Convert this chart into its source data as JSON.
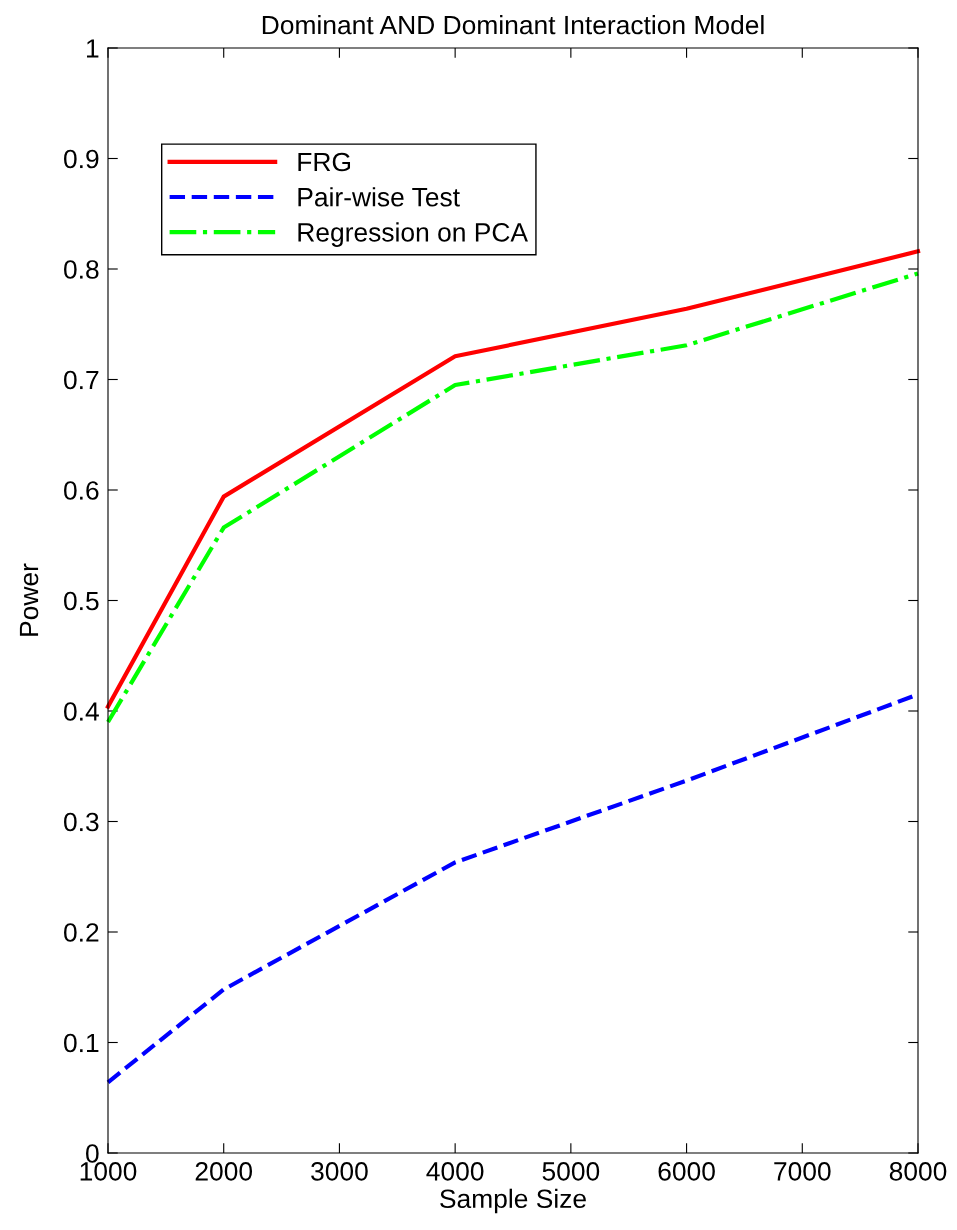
{
  "chart_data": {
    "type": "line",
    "title": "Dominant AND Dominant Interaction Model",
    "xlabel": "Sample Size",
    "ylabel": "Power",
    "x": [
      1000,
      2000,
      4000,
      6000,
      8000
    ],
    "series": [
      {
        "name": "FRG",
        "color": "#ff0000",
        "line_style": "solid",
        "values": [
          0.404,
          0.594,
          0.721,
          0.764,
          0.816
        ]
      },
      {
        "name": "Pair-wise Test",
        "color": "#0000ff",
        "line_style": "dashed",
        "values": [
          0.064,
          0.148,
          0.263,
          0.337,
          0.415
        ]
      },
      {
        "name": "Regression on PCA",
        "color": "#00ff00",
        "line_style": "dashdot",
        "values": [
          0.39,
          0.566,
          0.695,
          0.731,
          0.796
        ]
      }
    ],
    "xlim": [
      1000,
      8000
    ],
    "xticks": [
      1000,
      2000,
      3000,
      4000,
      5000,
      6000,
      7000,
      8000
    ],
    "ylim": [
      0,
      1
    ],
    "yticks": [
      0,
      0.1,
      0.2,
      0.3,
      0.4,
      0.5,
      0.6,
      0.7,
      0.8,
      0.9,
      1
    ],
    "grid": false,
    "legend": "top left",
    "marker": "none"
  }
}
